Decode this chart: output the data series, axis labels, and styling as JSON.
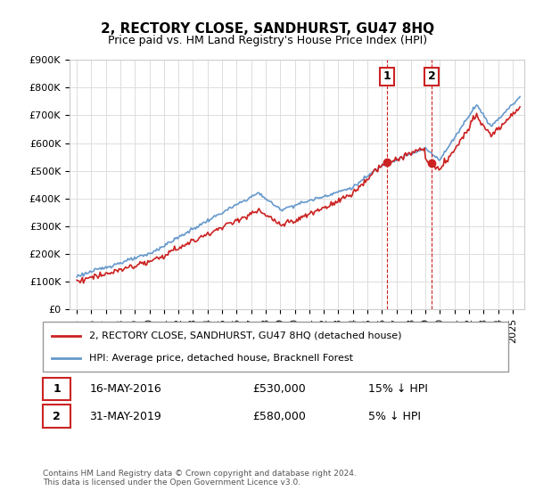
{
  "title": "2, RECTORY CLOSE, SANDHURST, GU47 8HQ",
  "subtitle": "Price paid vs. HM Land Registry's House Price Index (HPI)",
  "ylabel": "",
  "xlabel": "",
  "ylim": [
    0,
    900000
  ],
  "yticks": [
    0,
    100000,
    200000,
    300000,
    400000,
    500000,
    600000,
    700000,
    800000,
    900000
  ],
  "ytick_labels": [
    "£0",
    "£100K",
    "£200K",
    "£300K",
    "£400K",
    "£500K",
    "£600K",
    "£700K",
    "£800K",
    "£900K"
  ],
  "hpi_color": "#6699cc",
  "price_color": "#cc2222",
  "dashed_color": "#cc2222",
  "sale1_date": 2016.37,
  "sale1_price": 530000,
  "sale1_label": "1",
  "sale2_date": 2019.41,
  "sale2_price": 580000,
  "sale2_label": "2",
  "legend_property": "2, RECTORY CLOSE, SANDHURST, GU47 8HQ (detached house)",
  "legend_hpi": "HPI: Average price, detached house, Bracknell Forest",
  "table_row1_num": "1",
  "table_row1_date": "16-MAY-2016",
  "table_row1_price": "£530,000",
  "table_row1_hpi": "15% ↓ HPI",
  "table_row2_num": "2",
  "table_row2_date": "31-MAY-2019",
  "table_row2_price": "£580,000",
  "table_row2_hpi": "5% ↓ HPI",
  "footer": "Contains HM Land Registry data © Crown copyright and database right 2024.\nThis data is licensed under the Open Government Licence v3.0.",
  "background_color": "#ffffff",
  "grid_color": "#dddddd"
}
